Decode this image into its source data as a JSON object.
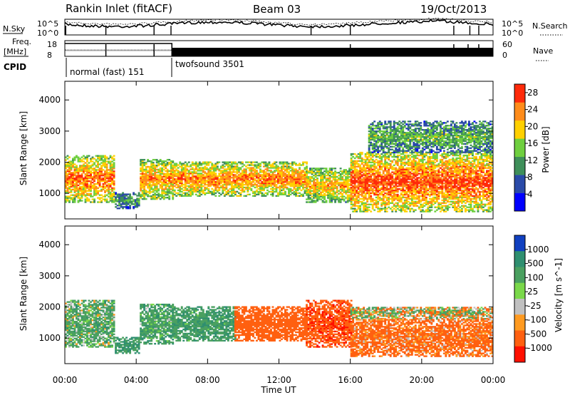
{
  "header": {
    "title": "Rankin Inlet (fitACF)",
    "beam": "Beam 03",
    "date": "19/Oct/2013"
  },
  "noise_panel": {
    "left_label": "N.Sky",
    "right_label": "N.Search",
    "tick_top": "10^5",
    "tick_bottom": "10^0"
  },
  "freq_panel": {
    "left_label_1": "Freq.",
    "left_label_2": "[MHz]",
    "right_label": "Nave",
    "left_ticks": [
      "18",
      "8"
    ],
    "right_ticks": [
      "60",
      "0"
    ]
  },
  "cpid": {
    "label": "CPID",
    "segments": [
      {
        "name": "normal (fast) 151",
        "start_h": 0,
        "end_h": 6
      },
      {
        "name": "twofsound 3501",
        "start_h": 6,
        "end_h": 24
      }
    ]
  },
  "colors": {
    "power_scale": [
      "#0000ff",
      "#2a4aa8",
      "#3f8f5a",
      "#6fcf3f",
      "#ffd000",
      "#ff8c1a",
      "#ff2a0a"
    ],
    "velocity_scale": [
      "#1040c0",
      "#2f8f70",
      "#4aa060",
      "#7ad84a",
      "#c0c0c0",
      "#ff9a20",
      "#ff6010",
      "#ff1000"
    ],
    "ground_scatter": "#c8c8c8"
  },
  "chart_data": [
    {
      "type": "heatmap",
      "panel": "power",
      "ylabel": "Slant Range [km]",
      "x_range_h": [
        0,
        24
      ],
      "y_range_km": [
        180,
        4600
      ],
      "yticks": [
        1000,
        2000,
        3000,
        4000
      ],
      "xticks_h": [
        0,
        4,
        8,
        12,
        16,
        20,
        24
      ],
      "colorbar": {
        "label": "Power [dB]",
        "ticks": [
          "28",
          "24",
          "20",
          "16",
          "12",
          "8",
          "4"
        ],
        "range": [
          0,
          30
        ]
      },
      "scatter_regions": [
        {
          "t0": 0.0,
          "t1": 2.8,
          "r0": 700,
          "r1": 2200,
          "level": 26
        },
        {
          "t0": 2.8,
          "t1": 4.2,
          "r0": 500,
          "r1": 1000,
          "level": 12
        },
        {
          "t0": 4.2,
          "t1": 6.0,
          "r0": 800,
          "r1": 2100,
          "level": 24
        },
        {
          "t0": 6.0,
          "t1": 13.5,
          "r0": 900,
          "r1": 2000,
          "level": 25
        },
        {
          "t0": 13.5,
          "t1": 16.0,
          "r0": 700,
          "r1": 1800,
          "level": 22
        },
        {
          "t0": 16.0,
          "t1": 24.0,
          "r0": 400,
          "r1": 2300,
          "level": 28
        },
        {
          "t0": 17.0,
          "t1": 24.0,
          "r0": 2300,
          "r1": 3300,
          "level": 14
        }
      ]
    },
    {
      "type": "heatmap",
      "panel": "velocity",
      "xlabel": "Time UT",
      "ylabel": "Slant Range [km]",
      "x_range_h": [
        0,
        24
      ],
      "y_range_km": [
        180,
        4600
      ],
      "yticks": [
        1000,
        2000,
        3000,
        4000
      ],
      "xticks_h": [
        0,
        4,
        8,
        12,
        16,
        20,
        24
      ],
      "xticklabels": [
        "00:00",
        "04:00",
        "08:00",
        "12:00",
        "16:00",
        "20:00",
        "00:00"
      ],
      "colorbar": {
        "label": "Velocity [m s^-1]",
        "ticks": [
          "1000",
          "500",
          "100",
          "25",
          "-25",
          "-100",
          "-500",
          "-1000"
        ]
      },
      "scatter_regions": [
        {
          "t0": 0.0,
          "t1": 2.8,
          "r0": 700,
          "r1": 2200,
          "velocity": 150
        },
        {
          "t0": 2.8,
          "t1": 4.2,
          "r0": 500,
          "r1": 1000,
          "velocity": 300
        },
        {
          "t0": 4.2,
          "t1": 6.0,
          "r0": 800,
          "r1": 2100,
          "velocity": 200
        },
        {
          "t0": 6.0,
          "t1": 9.5,
          "r0": 900,
          "r1": 2000,
          "velocity": 250
        },
        {
          "t0": 9.5,
          "t1": 13.5,
          "r0": 900,
          "r1": 2000,
          "velocity": -300
        },
        {
          "t0": 13.5,
          "t1": 16.0,
          "r0": 700,
          "r1": 2200,
          "velocity": -400
        },
        {
          "t0": 16.0,
          "t1": 24.0,
          "r0": 1600,
          "r1": 2000,
          "velocity": 0
        },
        {
          "t0": 16.0,
          "t1": 24.0,
          "r0": 400,
          "r1": 1600,
          "velocity": -200
        }
      ]
    }
  ]
}
